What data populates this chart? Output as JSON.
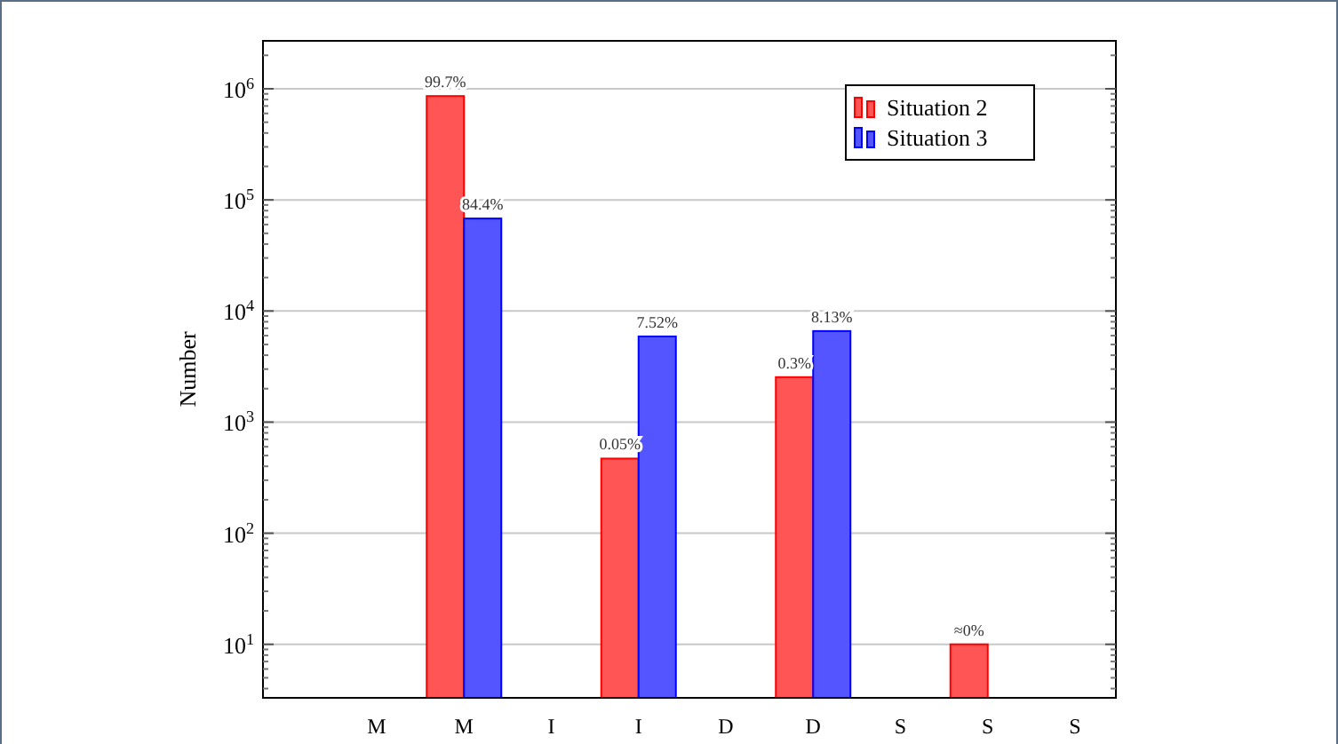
{
  "chart_data": {
    "type": "bar",
    "ylabel": "Number",
    "log": "y",
    "grid": "y",
    "legend": "top right",
    "categories": [
      "M",
      "M",
      "I",
      "I",
      "D",
      "D",
      "S",
      "S",
      "S"
    ],
    "ylim": [
      3.3,
      2700000
    ],
    "yticks": [
      {
        "value": 10,
        "label": "10$^{1}$"
      },
      {
        "value": 100,
        "label": "10$^{2}$"
      },
      {
        "value": 1000,
        "label": "10$^{3}$"
      },
      {
        "value": 10000,
        "label": "10$^{4}$"
      },
      {
        "value": 100000,
        "label": "10$^{5}$"
      },
      {
        "value": 1000000,
        "label": "10$^{6}$"
      }
    ],
    "series": [
      {
        "name": "Situation 2",
        "color": "#ff5555",
        "values": [
          null,
          860000,
          null,
          470,
          null,
          2540,
          null,
          10,
          null
        ]
      },
      {
        "name": "Situation 3",
        "color": "#5555ff",
        "values": [
          null,
          68000,
          null,
          5900,
          null,
          6600,
          null,
          null,
          null
        ]
      }
    ],
    "annotations": [
      "99.7%",
      "84.4%",
      "0.05%",
      "7.52%",
      "0.3%",
      "8.13%",
      "≈0%"
    ]
  }
}
